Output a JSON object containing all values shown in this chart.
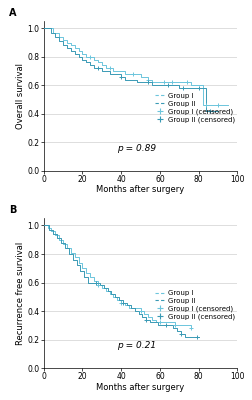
{
  "panel_A": {
    "title": "A",
    "ylabel": "Overall survival",
    "xlabel": "Months after surgery",
    "pvalue": "p = 0.89",
    "xlim": [
      0,
      100
    ],
    "ylim": [
      0.0,
      1.05
    ],
    "yticks": [
      0.0,
      0.2,
      0.4,
      0.6,
      0.8,
      1.0
    ],
    "xticks": [
      0,
      20,
      40,
      60,
      80,
      100
    ],
    "group1_color": "#6cc5dc",
    "group2_color": "#3a9ab5",
    "group1_steps": [
      [
        0,
        1.0
      ],
      [
        3,
        1.0
      ],
      [
        5,
        0.97
      ],
      [
        8,
        0.94
      ],
      [
        10,
        0.92
      ],
      [
        12,
        0.9
      ],
      [
        14,
        0.88
      ],
      [
        16,
        0.86
      ],
      [
        18,
        0.84
      ],
      [
        20,
        0.82
      ],
      [
        22,
        0.8
      ],
      [
        24,
        0.8
      ],
      [
        26,
        0.78
      ],
      [
        28,
        0.76
      ],
      [
        30,
        0.74
      ],
      [
        32,
        0.72
      ],
      [
        34,
        0.72
      ],
      [
        36,
        0.7
      ],
      [
        38,
        0.7
      ],
      [
        40,
        0.7
      ],
      [
        42,
        0.68
      ],
      [
        44,
        0.68
      ],
      [
        46,
        0.68
      ],
      [
        48,
        0.68
      ],
      [
        50,
        0.66
      ],
      [
        52,
        0.66
      ],
      [
        54,
        0.64
      ],
      [
        56,
        0.62
      ],
      [
        58,
        0.62
      ],
      [
        60,
        0.62
      ],
      [
        62,
        0.62
      ],
      [
        64,
        0.62
      ],
      [
        66,
        0.62
      ],
      [
        68,
        0.62
      ],
      [
        70,
        0.62
      ],
      [
        72,
        0.62
      ],
      [
        74,
        0.62
      ],
      [
        76,
        0.6
      ],
      [
        78,
        0.6
      ],
      [
        80,
        0.6
      ],
      [
        82,
        0.46
      ],
      [
        84,
        0.46
      ],
      [
        86,
        0.46
      ],
      [
        88,
        0.46
      ],
      [
        90,
        0.46
      ],
      [
        95,
        0.46
      ]
    ],
    "group2_steps": [
      [
        0,
        1.0
      ],
      [
        4,
        0.97
      ],
      [
        6,
        0.94
      ],
      [
        8,
        0.91
      ],
      [
        10,
        0.88
      ],
      [
        12,
        0.86
      ],
      [
        14,
        0.84
      ],
      [
        16,
        0.82
      ],
      [
        18,
        0.8
      ],
      [
        20,
        0.78
      ],
      [
        22,
        0.76
      ],
      [
        24,
        0.74
      ],
      [
        26,
        0.72
      ],
      [
        28,
        0.72
      ],
      [
        30,
        0.7
      ],
      [
        32,
        0.7
      ],
      [
        34,
        0.68
      ],
      [
        36,
        0.68
      ],
      [
        38,
        0.68
      ],
      [
        40,
        0.66
      ],
      [
        42,
        0.64
      ],
      [
        44,
        0.64
      ],
      [
        46,
        0.64
      ],
      [
        48,
        0.62
      ],
      [
        50,
        0.62
      ],
      [
        52,
        0.62
      ],
      [
        54,
        0.62
      ],
      [
        56,
        0.6
      ],
      [
        58,
        0.6
      ],
      [
        60,
        0.6
      ],
      [
        62,
        0.6
      ],
      [
        64,
        0.6
      ],
      [
        66,
        0.6
      ],
      [
        68,
        0.6
      ],
      [
        70,
        0.58
      ],
      [
        72,
        0.58
      ],
      [
        74,
        0.58
      ],
      [
        76,
        0.58
      ],
      [
        78,
        0.58
      ],
      [
        80,
        0.58
      ],
      [
        82,
        0.58
      ],
      [
        84,
        0.42
      ],
      [
        86,
        0.42
      ],
      [
        90,
        0.42
      ]
    ],
    "group1_censored": [
      [
        24,
        0.8
      ],
      [
        34,
        0.72
      ],
      [
        46,
        0.68
      ],
      [
        54,
        0.64
      ],
      [
        62,
        0.62
      ],
      [
        66,
        0.62
      ],
      [
        74,
        0.62
      ],
      [
        84,
        0.46
      ],
      [
        90,
        0.46
      ]
    ],
    "group2_censored": [
      [
        28,
        0.72
      ],
      [
        40,
        0.66
      ],
      [
        54,
        0.62
      ],
      [
        64,
        0.6
      ],
      [
        72,
        0.58
      ],
      [
        80,
        0.58
      ],
      [
        86,
        0.42
      ]
    ]
  },
  "panel_B": {
    "title": "B",
    "ylabel": "Recurrence free survival",
    "xlabel": "Months after surgery",
    "pvalue": "p = 0.21",
    "xlim": [
      0,
      100
    ],
    "ylim": [
      0.0,
      1.05
    ],
    "yticks": [
      0.0,
      0.2,
      0.4,
      0.6,
      0.8,
      1.0
    ],
    "xticks": [
      0,
      20,
      40,
      60,
      80,
      100
    ],
    "group1_color": "#6cc5dc",
    "group2_color": "#3a9ab5",
    "group1_steps": [
      [
        0,
        1.0
      ],
      [
        2,
        0.98
      ],
      [
        4,
        0.96
      ],
      [
        6,
        0.93
      ],
      [
        8,
        0.9
      ],
      [
        10,
        0.87
      ],
      [
        12,
        0.84
      ],
      [
        14,
        0.81
      ],
      [
        16,
        0.78
      ],
      [
        18,
        0.74
      ],
      [
        20,
        0.7
      ],
      [
        22,
        0.67
      ],
      [
        24,
        0.64
      ],
      [
        26,
        0.61
      ],
      [
        28,
        0.58
      ],
      [
        30,
        0.56
      ],
      [
        32,
        0.54
      ],
      [
        34,
        0.52
      ],
      [
        36,
        0.5
      ],
      [
        38,
        0.48
      ],
      [
        40,
        0.46
      ],
      [
        42,
        0.44
      ],
      [
        44,
        0.42
      ],
      [
        46,
        0.42
      ],
      [
        48,
        0.42
      ],
      [
        50,
        0.4
      ],
      [
        52,
        0.38
      ],
      [
        54,
        0.36
      ],
      [
        56,
        0.34
      ],
      [
        58,
        0.32
      ],
      [
        60,
        0.32
      ],
      [
        62,
        0.32
      ],
      [
        64,
        0.32
      ],
      [
        66,
        0.32
      ],
      [
        68,
        0.3
      ],
      [
        70,
        0.3
      ],
      [
        72,
        0.3
      ],
      [
        74,
        0.3
      ],
      [
        76,
        0.28
      ]
    ],
    "group2_steps": [
      [
        0,
        1.0
      ],
      [
        3,
        0.97
      ],
      [
        5,
        0.94
      ],
      [
        7,
        0.91
      ],
      [
        9,
        0.88
      ],
      [
        11,
        0.84
      ],
      [
        13,
        0.8
      ],
      [
        15,
        0.76
      ],
      [
        17,
        0.72
      ],
      [
        19,
        0.68
      ],
      [
        21,
        0.64
      ],
      [
        23,
        0.6
      ],
      [
        25,
        0.6
      ],
      [
        27,
        0.6
      ],
      [
        29,
        0.58
      ],
      [
        31,
        0.56
      ],
      [
        33,
        0.54
      ],
      [
        35,
        0.52
      ],
      [
        37,
        0.5
      ],
      [
        39,
        0.48
      ],
      [
        41,
        0.46
      ],
      [
        43,
        0.44
      ],
      [
        45,
        0.42
      ],
      [
        47,
        0.4
      ],
      [
        49,
        0.38
      ],
      [
        51,
        0.36
      ],
      [
        53,
        0.34
      ],
      [
        55,
        0.32
      ],
      [
        57,
        0.32
      ],
      [
        59,
        0.3
      ],
      [
        61,
        0.3
      ],
      [
        63,
        0.3
      ],
      [
        65,
        0.3
      ],
      [
        67,
        0.28
      ],
      [
        69,
        0.26
      ],
      [
        71,
        0.24
      ],
      [
        73,
        0.22
      ],
      [
        75,
        0.22
      ],
      [
        77,
        0.22
      ],
      [
        80,
        0.22
      ]
    ],
    "group1_censored": [
      [
        28,
        0.58
      ],
      [
        40,
        0.46
      ],
      [
        50,
        0.4
      ],
      [
        60,
        0.32
      ],
      [
        68,
        0.3
      ],
      [
        76,
        0.28
      ]
    ],
    "group2_censored": [
      [
        27,
        0.6
      ],
      [
        41,
        0.46
      ],
      [
        53,
        0.34
      ],
      [
        63,
        0.3
      ],
      [
        71,
        0.24
      ],
      [
        79,
        0.22
      ]
    ]
  },
  "legend_labels": [
    "Group I",
    "Group II",
    "Group I (censored)",
    "Group II (censored)"
  ],
  "background_color": "#ffffff",
  "grid_color": "#d0d0d0",
  "font_size": 5.5,
  "label_fontsize": 6,
  "title_fontsize": 7
}
